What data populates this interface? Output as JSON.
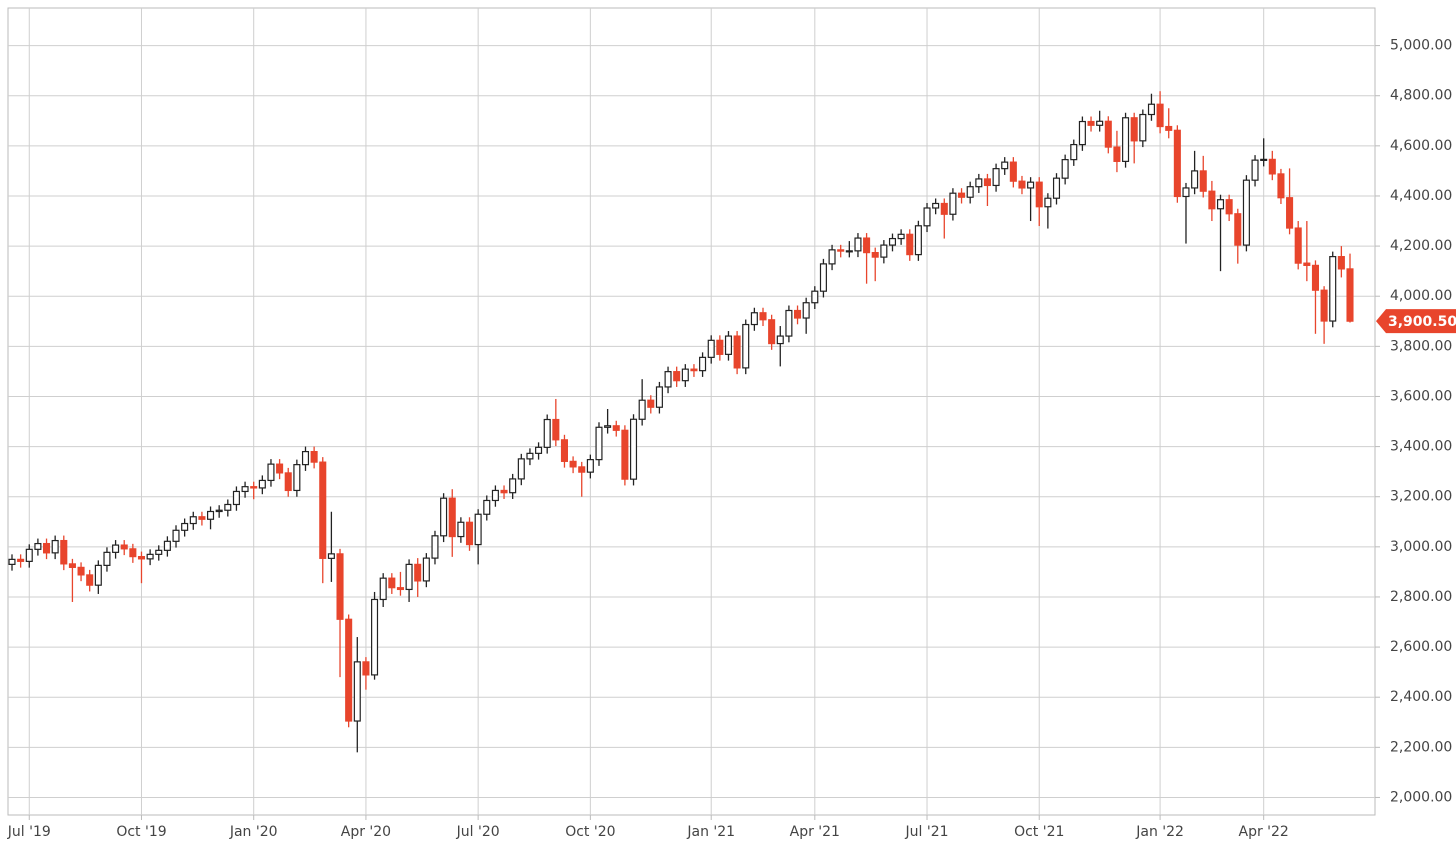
{
  "chart_data": {
    "type": "candlestick",
    "categories": [
      null,
      null,
      "Jul '19",
      null,
      null,
      null,
      null,
      null,
      null,
      null,
      null,
      null,
      null,
      null,
      null,
      "Oct '19",
      null,
      null,
      null,
      null,
      null,
      null,
      null,
      null,
      null,
      null,
      null,
      null,
      "Jan '20",
      null,
      null,
      null,
      null,
      null,
      null,
      null,
      null,
      null,
      null,
      null,
      null,
      "Apr '20",
      null,
      null,
      null,
      null,
      null,
      null,
      null,
      null,
      null,
      null,
      null,
      null,
      "Jul '20",
      null,
      null,
      null,
      null,
      null,
      null,
      null,
      null,
      null,
      null,
      null,
      null,
      "Oct '20",
      null,
      null,
      null,
      null,
      null,
      null,
      null,
      null,
      null,
      null,
      null,
      null,
      null,
      "Jan '21",
      null,
      null,
      null,
      null,
      null,
      null,
      null,
      null,
      null,
      null,
      null,
      "Apr '21",
      null,
      null,
      null,
      null,
      null,
      null,
      null,
      null,
      null,
      null,
      null,
      null,
      "Jul '21",
      null,
      null,
      null,
      null,
      null,
      null,
      null,
      null,
      null,
      null,
      null,
      null,
      "Oct '21",
      null,
      null,
      null,
      null,
      null,
      null,
      null,
      null,
      null,
      null,
      null,
      null,
      null,
      "Jan '22",
      null,
      null,
      null,
      null,
      null,
      null,
      null,
      null,
      null,
      null,
      null,
      "Apr '22",
      null,
      null,
      null,
      null,
      null,
      null,
      null,
      null,
      null,
      null
    ],
    "open": [
      2930,
      2950,
      2942,
      2990,
      3013,
      2976,
      3025,
      2932,
      2918,
      2888,
      2847,
      2926,
      2978,
      3007,
      2992,
      2961,
      2952,
      2970,
      2986,
      3022,
      3066,
      3093,
      3120,
      3110,
      3141,
      3146,
      3169,
      3221,
      3240,
      3235,
      3265,
      3330,
      3295,
      3225,
      3328,
      3380,
      3338,
      2954,
      2972,
      2711,
      2305,
      2541,
      2489,
      2790,
      2875,
      2837,
      2830,
      2930,
      2864,
      2955,
      3044,
      3194,
      3041,
      3098,
      3009,
      3130,
      3185,
      3225,
      3216,
      3271,
      3351,
      3373,
      3397,
      3508,
      3427,
      3341,
      3319,
      3298,
      3348,
      3477,
      3483,
      3465,
      3270,
      3509,
      3585,
      3557,
      3638,
      3699,
      3663,
      3709,
      3703,
      3756,
      3824,
      3768,
      3841,
      3714,
      3887,
      3934,
      3906,
      3811,
      3841,
      3943,
      3913,
      3974,
      4020,
      4129,
      4185,
      4180,
      4181,
      4232,
      4174,
      4156,
      4204,
      4230,
      4247,
      4166,
      4281,
      4352,
      4370,
      4327,
      4411,
      4395,
      4437,
      4468,
      4442,
      4509,
      4535,
      4459,
      4432,
      4455,
      4357,
      4391,
      4471,
      4545,
      4605,
      4697,
      4682,
      4698,
      4595,
      4538,
      4712,
      4620,
      4725,
      4766,
      4677,
      4662,
      4398,
      4432,
      4500,
      4419,
      4349,
      4385,
      4329,
      4204,
      4463,
      4543,
      4546,
      4488,
      4393,
      4272,
      4132,
      4123,
      4024,
      3901,
      4158,
      4109
    ],
    "high": [
      2970,
      2970,
      3010,
      3033,
      3033,
      3045,
      3045,
      2952,
      2938,
      2908,
      2946,
      2998,
      3027,
      3027,
      3012,
      2981,
      2990,
      3006,
      3042,
      3086,
      3113,
      3140,
      3140,
      3161,
      3166,
      3189,
      3241,
      3260,
      3260,
      3285,
      3350,
      3350,
      3315,
      3348,
      3400,
      3400,
      3358,
      3140,
      2992,
      2730,
      2640,
      2560,
      2820,
      2895,
      2895,
      2900,
      2950,
      2955,
      2975,
      3064,
      3214,
      3230,
      3118,
      3118,
      3150,
      3205,
      3245,
      3245,
      3291,
      3371,
      3393,
      3417,
      3528,
      3590,
      3447,
      3361,
      3339,
      3368,
      3497,
      3550,
      3503,
      3485,
      3529,
      3669,
      3605,
      3658,
      3719,
      3719,
      3729,
      3729,
      3776,
      3844,
      3844,
      3861,
      3861,
      3907,
      3954,
      3954,
      3926,
      3881,
      3963,
      3963,
      3994,
      4040,
      4149,
      4205,
      4205,
      4220,
      4252,
      4252,
      4194,
      4224,
      4250,
      4267,
      4267,
      4301,
      4372,
      4390,
      4390,
      4431,
      4431,
      4457,
      4488,
      4488,
      4529,
      4555,
      4555,
      4480,
      4475,
      4475,
      4411,
      4491,
      4565,
      4625,
      4717,
      4717,
      4740,
      4718,
      4660,
      4732,
      4732,
      4745,
      4808,
      4818,
      4750,
      4682,
      4452,
      4580,
      4560,
      4460,
      4405,
      4405,
      4349,
      4483,
      4563,
      4630,
      4580,
      4508,
      4510,
      4300,
      4300,
      4143,
      4040,
      4178,
      4200,
      4170
    ],
    "low": [
      2905,
      2917,
      2917,
      2965,
      2951,
      2951,
      2907,
      2780,
      2863,
      2822,
      2812,
      2901,
      2953,
      2967,
      2936,
      2855,
      2927,
      2945,
      2961,
      2997,
      3041,
      3068,
      3085,
      3070,
      3116,
      3121,
      3144,
      3196,
      3190,
      3210,
      3240,
      3270,
      3200,
      3200,
      3303,
      3313,
      2855,
      2860,
      2480,
      2280,
      2180,
      2430,
      2470,
      2760,
      2812,
      2805,
      2780,
      2800,
      2839,
      2930,
      3019,
      2960,
      3016,
      2984,
      2930,
      3105,
      3160,
      3191,
      3191,
      3246,
      3326,
      3348,
      3372,
      3402,
      3316,
      3294,
      3200,
      3273,
      3323,
      3452,
      3440,
      3245,
      3245,
      3484,
      3532,
      3532,
      3613,
      3638,
      3638,
      3678,
      3678,
      3731,
      3743,
      3743,
      3689,
      3689,
      3862,
      3881,
      3786,
      3720,
      3816,
      3888,
      3850,
      3949,
      3995,
      4104,
      4155,
      4155,
      4156,
      4050,
      4060,
      4131,
      4179,
      4205,
      4141,
      4141,
      4256,
      4327,
      4230,
      4302,
      4370,
      4370,
      4412,
      4360,
      4417,
      4484,
      4434,
      4407,
      4300,
      4280,
      4270,
      4366,
      4446,
      4520,
      4580,
      4657,
      4657,
      4570,
      4495,
      4513,
      4530,
      4595,
      4700,
      4650,
      4630,
      4373,
      4210,
      4407,
      4394,
      4300,
      4100,
      4300,
      4130,
      4179,
      4438,
      4518,
      4463,
      4368,
      4247,
      4107,
      4060,
      3850,
      3810,
      3876,
      4075,
      3895
    ],
    "close": [
      2950,
      2942,
      2990,
      3013,
      2976,
      3025,
      2932,
      2918,
      2888,
      2847,
      2926,
      2978,
      3007,
      2992,
      2961,
      2952,
      2970,
      2986,
      3022,
      3066,
      3093,
      3120,
      3110,
      3141,
      3146,
      3169,
      3221,
      3240,
      3235,
      3265,
      3330,
      3295,
      3225,
      3328,
      3380,
      3338,
      2954,
      2972,
      2711,
      2305,
      2541,
      2489,
      2790,
      2875,
      2837,
      2830,
      2930,
      2864,
      2955,
      3044,
      3194,
      3041,
      3098,
      3009,
      3130,
      3185,
      3225,
      3216,
      3271,
      3351,
      3373,
      3397,
      3508,
      3427,
      3341,
      3319,
      3298,
      3348,
      3477,
      3483,
      3465,
      3270,
      3509,
      3585,
      3557,
      3638,
      3699,
      3663,
      3709,
      3703,
      3756,
      3824,
      3768,
      3841,
      3714,
      3887,
      3934,
      3906,
      3811,
      3841,
      3943,
      3913,
      3974,
      4020,
      4129,
      4185,
      4180,
      4181,
      4232,
      4174,
      4156,
      4204,
      4230,
      4247,
      4166,
      4281,
      4352,
      4370,
      4327,
      4411,
      4395,
      4437,
      4468,
      4442,
      4509,
      4535,
      4459,
      4432,
      4455,
      4357,
      4391,
      4471,
      4545,
      4605,
      4697,
      4682,
      4698,
      4595,
      4538,
      4712,
      4620,
      4725,
      4766,
      4677,
      4662,
      4398,
      4432,
      4500,
      4419,
      4349,
      4385,
      4329,
      4204,
      4463,
      4543,
      4546,
      4488,
      4393,
      4272,
      4132,
      4123,
      4024,
      3901,
      4158,
      4109,
      3900.5
    ],
    "last_close_label": "3,900.50",
    "up_color": "#ffffff",
    "down_color": "#e8452c",
    "ylim": [
      1930,
      5150
    ],
    "yticks": [
      {
        "value": 2000,
        "label": "2,000.00"
      },
      {
        "value": 2200,
        "label": "2,200.00"
      },
      {
        "value": 2400,
        "label": "2,400.00"
      },
      {
        "value": 2600,
        "label": "2,600.00"
      },
      {
        "value": 2800,
        "label": "2,800.00"
      },
      {
        "value": 3000,
        "label": "3,000.00"
      },
      {
        "value": 3200,
        "label": "3,200.00"
      },
      {
        "value": 3400,
        "label": "3,400.00"
      },
      {
        "value": 3600,
        "label": "3,600.00"
      },
      {
        "value": 3800,
        "label": "3,800.00"
      },
      {
        "value": 4000,
        "label": "4,000.00"
      },
      {
        "value": 4200,
        "label": "4,200.00"
      },
      {
        "value": 4400,
        "label": "4,400.00"
      },
      {
        "value": 4600,
        "label": "4,600.00"
      },
      {
        "value": 4800,
        "label": "4,800.00"
      },
      {
        "value": 5000,
        "label": "5,000.00"
      }
    ],
    "grid": true
  }
}
